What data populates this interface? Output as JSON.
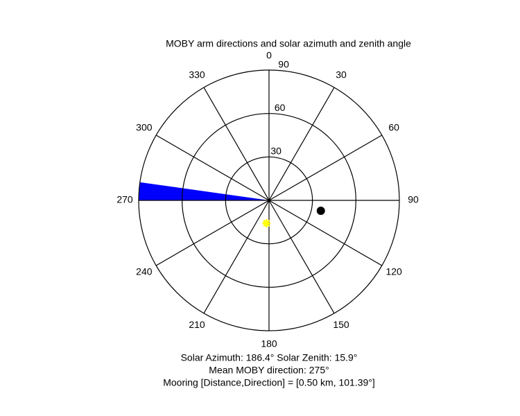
{
  "chart_data": {
    "type": "polar",
    "title": "MOBY arm directions and solar azimuth and zenith angle",
    "rlim": [
      0,
      90
    ],
    "rticks": [
      30,
      60,
      90
    ],
    "thetaticks": [
      0,
      30,
      60,
      90,
      120,
      150,
      180,
      210,
      240,
      270,
      300,
      330
    ],
    "wedges": [
      {
        "theta": [
          270,
          278
        ],
        "r": 90,
        "color": "#0000ff"
      }
    ],
    "points": [
      {
        "theta": 186.4,
        "r": 15.9,
        "color": "#ffff00",
        "marker": "star"
      },
      {
        "theta": 101.39,
        "r": 36.5,
        "color": "#000000",
        "marker": "circle"
      }
    ],
    "annotations": [
      "Solar Azimuth: 186.4°   Solar Zenith: 15.9°",
      "Mean MOBY direction: 275°",
      "Mooring [Distance,Direction] = [0.50 km, 101.39°]"
    ]
  }
}
